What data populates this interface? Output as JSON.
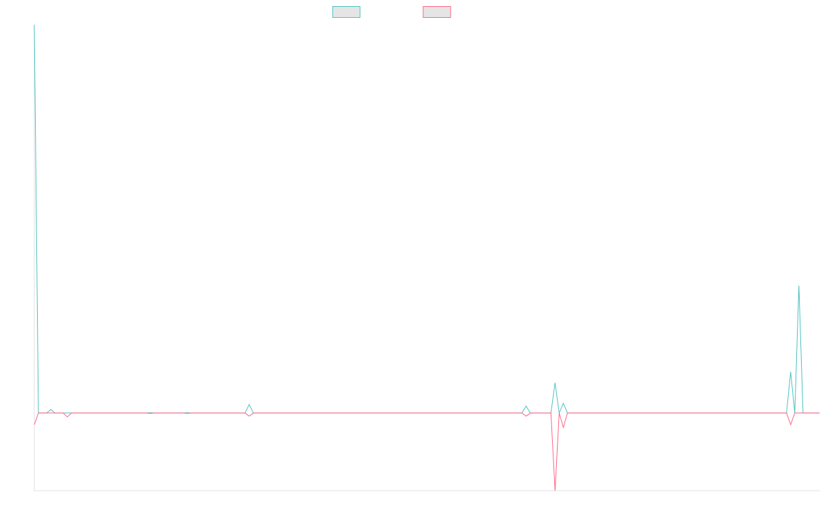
{
  "chart_data": {
    "type": "line",
    "categories": [
      null,
      null,
      null,
      null,
      null,
      null,
      null,
      null,
      null,
      null,
      null,
      null,
      null,
      null,
      null,
      null,
      null,
      null,
      null,
      null,
      null,
      null,
      null,
      null,
      null,
      null,
      null,
      null,
      null,
      null,
      null,
      null,
      null,
      null,
      null,
      null,
      null,
      null,
      null,
      null,
      null,
      null,
      null,
      null,
      null,
      null,
      null,
      null,
      null,
      null,
      null,
      null,
      null,
      null,
      null,
      null,
      null,
      null,
      null,
      null,
      null,
      null,
      null,
      null,
      null,
      null,
      null,
      null,
      null,
      null,
      null,
      null,
      null,
      null,
      null,
      null,
      null,
      null,
      null,
      null,
      null,
      null,
      null,
      null,
      null,
      null,
      null,
      null,
      null,
      null,
      null,
      null,
      null,
      null,
      null,
      null,
      null,
      null,
      null,
      null,
      null,
      null,
      null,
      null,
      null,
      null,
      null,
      null,
      null,
      null,
      null,
      null,
      null,
      null,
      null,
      null,
      null,
      null,
      null,
      null,
      null,
      null,
      null,
      null,
      null,
      null,
      null,
      null,
      null,
      null,
      null,
      null,
      null,
      null,
      null,
      null,
      null,
      null,
      null,
      null,
      null,
      null,
      null,
      null,
      null,
      null,
      null,
      null,
      null,
      null,
      null,
      null,
      null,
      null,
      null,
      null,
      null,
      null,
      null,
      null,
      null,
      null,
      null,
      null,
      null,
      null,
      null,
      null,
      null,
      null,
      null,
      null,
      null,
      null,
      null,
      null,
      null,
      null,
      null,
      null,
      null,
      null,
      null,
      null,
      null,
      null,
      null,
      null,
      null,
      null,
      null
    ],
    "series": [
      {
        "color": "#4bc0c0",
        "values": [
          100,
          0,
          0,
          0,
          0.9,
          0,
          0,
          0,
          0,
          0,
          0,
          0,
          0,
          0,
          0,
          0,
          0,
          0,
          0,
          0,
          0,
          0,
          0,
          0,
          0,
          0,
          0,
          0,
          0.1,
          0,
          0,
          0,
          0,
          0,
          0,
          0,
          0,
          0.1,
          0,
          0,
          0,
          0,
          0,
          0,
          0,
          0,
          0,
          0,
          0,
          0,
          0,
          0,
          2.2,
          0,
          0,
          0,
          0,
          0,
          0,
          0,
          0,
          0,
          0,
          0,
          0,
          0,
          0,
          0,
          0,
          0,
          0,
          0,
          0,
          0,
          0,
          0,
          0,
          0,
          0,
          0,
          0,
          0,
          0,
          0,
          0,
          0,
          0,
          0,
          0,
          0,
          0,
          0,
          0,
          0,
          0,
          0,
          0,
          0,
          0,
          0,
          0,
          0,
          0,
          0,
          0,
          0,
          0,
          0,
          0,
          0,
          0,
          0,
          0,
          0,
          0,
          0,
          0,
          0,
          0,
          1.8,
          0,
          0,
          0,
          0,
          0,
          0,
          7.8,
          0,
          2.5,
          0,
          0,
          0,
          0,
          0,
          0,
          0,
          0,
          0,
          0,
          0,
          0,
          0,
          0,
          0,
          0,
          0,
          0,
          0,
          0,
          0,
          0,
          0,
          0,
          0,
          0,
          0,
          0,
          0,
          0,
          0,
          0,
          0,
          0,
          0,
          0,
          0,
          0,
          0,
          0,
          0,
          0,
          0,
          0,
          0,
          0,
          0,
          0,
          0,
          0,
          0,
          0,
          0,
          0,
          10.6,
          0,
          32.8,
          0,
          0,
          0,
          0,
          0
        ]
      },
      {
        "color": "#ff6384",
        "values": [
          -3,
          0,
          0,
          0,
          0,
          0,
          0,
          0,
          -1,
          0,
          0,
          0,
          0,
          0,
          0,
          0,
          0,
          0,
          0,
          0,
          0,
          0,
          0,
          0,
          0,
          0,
          0,
          0,
          -0.1,
          0,
          0,
          0,
          0,
          0,
          0,
          0,
          0,
          -0.1,
          0,
          0,
          0,
          0,
          0,
          0,
          0,
          0,
          0,
          0,
          0,
          0,
          0,
          0,
          -0.8,
          0,
          0,
          0,
          0,
          0,
          0,
          0,
          0,
          0,
          0,
          0,
          0,
          0,
          0,
          0,
          0,
          0,
          0,
          0,
          0,
          0,
          0,
          0,
          0,
          0,
          0,
          0,
          0,
          0,
          0,
          0,
          0,
          0,
          0,
          0,
          0,
          0,
          0,
          0,
          0,
          0,
          0,
          0,
          0,
          0,
          0,
          0,
          0,
          0,
          0,
          0,
          0,
          0,
          0,
          0,
          0,
          0,
          0,
          0,
          0,
          0,
          0,
          0,
          0,
          0,
          0,
          -0.8,
          0,
          0,
          0,
          0,
          0,
          0,
          -20,
          0,
          -3.7,
          0,
          0,
          0,
          0,
          0,
          0,
          0,
          0,
          0,
          0,
          0,
          0,
          0,
          0,
          0,
          0,
          0,
          0,
          0,
          0,
          0,
          0,
          0,
          0,
          0,
          0,
          0,
          0,
          0,
          0,
          0,
          0,
          0,
          0,
          0,
          0,
          0,
          0,
          0,
          0,
          0,
          0,
          0,
          0,
          0,
          0,
          0,
          0,
          0,
          0,
          0,
          0,
          0,
          0,
          -3,
          0,
          0,
          0,
          0,
          0,
          0,
          0
        ]
      }
    ],
    "ylim": [
      -20,
      100
    ],
    "legend": "top"
  }
}
